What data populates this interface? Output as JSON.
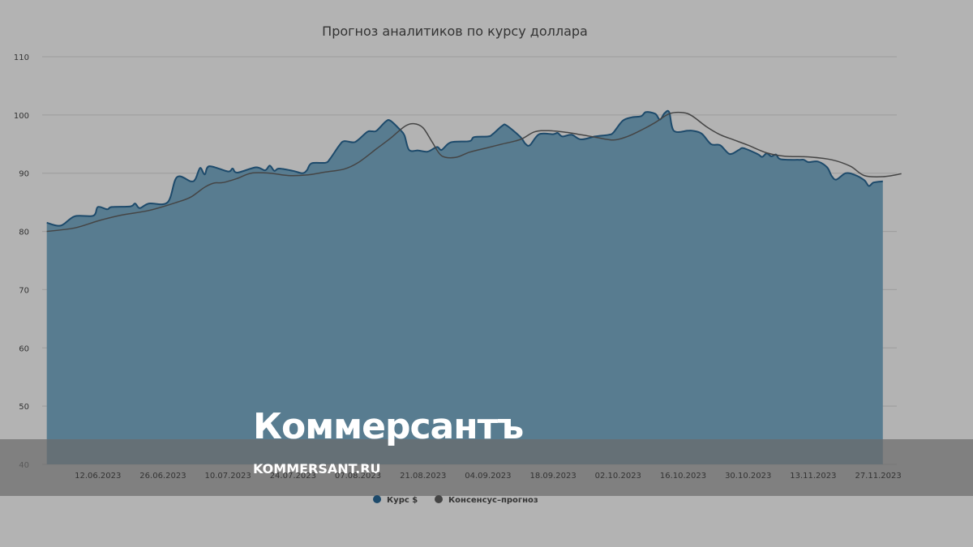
{
  "chart_data": {
    "type": "area",
    "title": "Прогноз аналитиков по курсу доллара",
    "xlabel": "",
    "ylabel": "",
    "ylim": [
      40,
      110
    ],
    "yticks": [
      40,
      50,
      60,
      70,
      80,
      90,
      100,
      110
    ],
    "xlim": [
      "2023-05-31",
      "2023-12-01"
    ],
    "xtick_labels": [
      "12.06.2023",
      "26.06.2023",
      "10.07.2023",
      "24.07.2023",
      "07.08.2023",
      "21.08.2023",
      "04.09.2023",
      "18.09.2023",
      "02.10.2023",
      "16.10.2023",
      "30.10.2023",
      "13.11.2023",
      "27.11.2023"
    ],
    "grid": true,
    "legend_position": "bottom-center",
    "series": [
      {
        "name": "Курс $",
        "type": "area",
        "color": "#1d4a6b",
        "points": [
          [
            "2023-06-01",
            81.5
          ],
          [
            "2023-06-04",
            81.0
          ],
          [
            "2023-06-07",
            82.6
          ],
          [
            "2023-06-11",
            82.7
          ],
          [
            "2023-06-12",
            84.2
          ],
          [
            "2023-06-14",
            83.8
          ],
          [
            "2023-06-15",
            84.2
          ],
          [
            "2023-06-19",
            84.3
          ],
          [
            "2023-06-20",
            84.8
          ],
          [
            "2023-06-21",
            84.0
          ],
          [
            "2023-06-23",
            84.8
          ],
          [
            "2023-06-27",
            85.0
          ],
          [
            "2023-06-29",
            89.3
          ],
          [
            "2023-07-02",
            88.6
          ],
          [
            "2023-07-03",
            89.0
          ],
          [
            "2023-07-04",
            90.9
          ],
          [
            "2023-07-05",
            89.8
          ],
          [
            "2023-07-06",
            91.2
          ],
          [
            "2023-07-10",
            90.3
          ],
          [
            "2023-07-11",
            90.8
          ],
          [
            "2023-07-12",
            90.1
          ],
          [
            "2023-07-16",
            91.0
          ],
          [
            "2023-07-18",
            90.5
          ],
          [
            "2023-07-19",
            91.3
          ],
          [
            "2023-07-20",
            90.4
          ],
          [
            "2023-07-21",
            90.8
          ],
          [
            "2023-07-24",
            90.4
          ],
          [
            "2023-07-26",
            90.0
          ],
          [
            "2023-07-27",
            90.5
          ],
          [
            "2023-07-28",
            91.7
          ],
          [
            "2023-07-31",
            91.8
          ],
          [
            "2023-08-01",
            92.5
          ],
          [
            "2023-08-03",
            94.8
          ],
          [
            "2023-08-04",
            95.5
          ],
          [
            "2023-08-06",
            95.3
          ],
          [
            "2023-08-07",
            95.7
          ],
          [
            "2023-08-09",
            97.1
          ],
          [
            "2023-08-10",
            97.2
          ],
          [
            "2023-08-11",
            97.3
          ],
          [
            "2023-08-13",
            98.9
          ],
          [
            "2023-08-14",
            99.0
          ],
          [
            "2023-08-16",
            97.5
          ],
          [
            "2023-08-17",
            96.5
          ],
          [
            "2023-08-18",
            94.0
          ],
          [
            "2023-08-20",
            93.9
          ],
          [
            "2023-08-22",
            93.7
          ],
          [
            "2023-08-24",
            94.5
          ],
          [
            "2023-08-25",
            94.0
          ],
          [
            "2023-08-27",
            95.3
          ],
          [
            "2023-08-31",
            95.5
          ],
          [
            "2023-09-01",
            96.2
          ],
          [
            "2023-09-04",
            96.3
          ],
          [
            "2023-09-05",
            96.7
          ],
          [
            "2023-09-07",
            98.1
          ],
          [
            "2023-09-08",
            98.2
          ],
          [
            "2023-09-11",
            96.2
          ],
          [
            "2023-09-12",
            95.1
          ],
          [
            "2023-09-13",
            94.8
          ],
          [
            "2023-09-15",
            96.7
          ],
          [
            "2023-09-18",
            96.7
          ],
          [
            "2023-09-19",
            96.9
          ],
          [
            "2023-09-20",
            96.3
          ],
          [
            "2023-09-22",
            96.6
          ],
          [
            "2023-09-24",
            95.8
          ],
          [
            "2023-09-27",
            96.3
          ],
          [
            "2023-09-30",
            96.6
          ],
          [
            "2023-10-01",
            97.0
          ],
          [
            "2023-10-03",
            99.0
          ],
          [
            "2023-10-05",
            99.6
          ],
          [
            "2023-10-07",
            99.8
          ],
          [
            "2023-10-08",
            100.5
          ],
          [
            "2023-10-10",
            100.2
          ],
          [
            "2023-10-11",
            99.2
          ],
          [
            "2023-10-12",
            100.3
          ],
          [
            "2023-10-13",
            100.5
          ],
          [
            "2023-10-14",
            97.3
          ],
          [
            "2023-10-17",
            97.3
          ],
          [
            "2023-10-18",
            97.3
          ],
          [
            "2023-10-20",
            96.8
          ],
          [
            "2023-10-22",
            95.0
          ],
          [
            "2023-10-24",
            94.8
          ],
          [
            "2023-10-26",
            93.3
          ],
          [
            "2023-10-28",
            94.0
          ],
          [
            "2023-10-29",
            94.3
          ],
          [
            "2023-11-01",
            93.3
          ],
          [
            "2023-11-02",
            92.8
          ],
          [
            "2023-11-03",
            93.4
          ],
          [
            "2023-11-04",
            92.9
          ],
          [
            "2023-11-05",
            93.2
          ],
          [
            "2023-11-06",
            92.4
          ],
          [
            "2023-11-10",
            92.3
          ],
          [
            "2023-11-11",
            92.3
          ],
          [
            "2023-11-12",
            91.9
          ],
          [
            "2023-11-14",
            92.0
          ],
          [
            "2023-11-16",
            91.0
          ],
          [
            "2023-11-17",
            89.5
          ],
          [
            "2023-11-18",
            88.9
          ],
          [
            "2023-11-20",
            90.0
          ],
          [
            "2023-11-22",
            89.7
          ],
          [
            "2023-11-24",
            88.8
          ],
          [
            "2023-11-25",
            87.8
          ],
          [
            "2023-11-26",
            88.4
          ],
          [
            "2023-11-28",
            88.6
          ]
        ]
      },
      {
        "name": "Консенсус–прогноз",
        "type": "line",
        "color": "#454545",
        "points": [
          [
            "2023-06-01",
            80.0
          ],
          [
            "2023-06-07",
            80.6
          ],
          [
            "2023-06-12",
            81.8
          ],
          [
            "2023-06-17",
            82.8
          ],
          [
            "2023-06-23",
            83.6
          ],
          [
            "2023-06-29",
            85.0
          ],
          [
            "2023-07-02",
            85.9
          ],
          [
            "2023-07-05",
            87.6
          ],
          [
            "2023-07-07",
            88.3
          ],
          [
            "2023-07-09",
            88.4
          ],
          [
            "2023-07-12",
            89.1
          ],
          [
            "2023-07-15",
            90.0
          ],
          [
            "2023-07-19",
            90.0
          ],
          [
            "2023-07-23",
            89.6
          ],
          [
            "2023-07-27",
            89.7
          ],
          [
            "2023-07-31",
            90.2
          ],
          [
            "2023-08-04",
            90.7
          ],
          [
            "2023-08-07",
            91.8
          ],
          [
            "2023-08-11",
            94.2
          ],
          [
            "2023-08-14",
            96.0
          ],
          [
            "2023-08-17",
            98.0
          ],
          [
            "2023-08-19",
            98.5
          ],
          [
            "2023-08-21",
            97.8
          ],
          [
            "2023-08-23",
            95.3
          ],
          [
            "2023-08-25",
            93.0
          ],
          [
            "2023-08-28",
            92.7
          ],
          [
            "2023-08-31",
            93.6
          ],
          [
            "2023-09-04",
            94.4
          ],
          [
            "2023-09-07",
            95.0
          ],
          [
            "2023-09-11",
            95.8
          ],
          [
            "2023-09-14",
            97.1
          ],
          [
            "2023-09-17",
            97.3
          ],
          [
            "2023-09-21",
            97.0
          ],
          [
            "2023-09-24",
            96.6
          ],
          [
            "2023-09-27",
            96.2
          ],
          [
            "2023-10-01",
            95.7
          ],
          [
            "2023-10-04",
            96.3
          ],
          [
            "2023-10-07",
            97.4
          ],
          [
            "2023-10-10",
            98.7
          ],
          [
            "2023-10-13",
            100.2
          ],
          [
            "2023-10-16",
            100.4
          ],
          [
            "2023-10-18",
            99.8
          ],
          [
            "2023-10-21",
            98.0
          ],
          [
            "2023-10-24",
            96.6
          ],
          [
            "2023-10-27",
            95.7
          ],
          [
            "2023-10-30",
            94.8
          ],
          [
            "2023-11-03",
            93.5
          ],
          [
            "2023-11-07",
            92.9
          ],
          [
            "2023-11-12",
            92.8
          ],
          [
            "2023-11-17",
            92.3
          ],
          [
            "2023-11-21",
            91.2
          ],
          [
            "2023-11-24",
            89.6
          ],
          [
            "2023-11-28",
            89.4
          ],
          [
            "2023-12-02",
            89.9
          ]
        ]
      }
    ]
  },
  "watermark": {
    "brand": "Коммерсантъ",
    "url": "KOMMERSANT.RU"
  },
  "colors": {
    "background": "#b3b3b3",
    "area_fill": "#587c90",
    "area_line": "#1d4a6b",
    "consensus_line": "#454545",
    "band": "#6b6b6b"
  }
}
